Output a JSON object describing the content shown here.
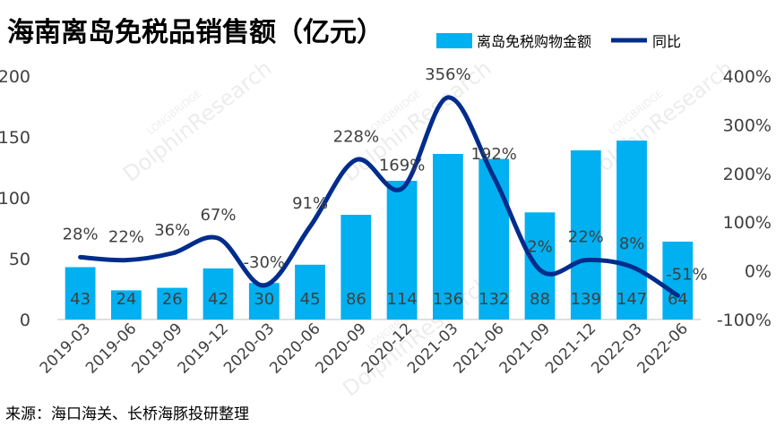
{
  "chart_data": {
    "type": "bar",
    "title": "海南离岛免税品销售额（亿元）",
    "categories": [
      "2019-03",
      "2019-06",
      "2019-09",
      "2019-12",
      "2020-03",
      "2020-06",
      "2020-09",
      "2020-12",
      "2021-03",
      "2021-06",
      "2021-09",
      "2021-12",
      "2022-03",
      "2022-06"
    ],
    "series": [
      {
        "name": "离岛免税购物金额",
        "type": "bar",
        "axis": "left",
        "color": "#00b0f0",
        "values": [
          43,
          24,
          26,
          42,
          30,
          45,
          86,
          114,
          136,
          132,
          88,
          139,
          147,
          64
        ],
        "labels": [
          "43",
          "24",
          "26",
          "42",
          "30",
          "45",
          "86",
          "114",
          "136",
          "132",
          "88",
          "139",
          "147",
          "64"
        ]
      },
      {
        "name": "同比",
        "type": "line",
        "axis": "right",
        "color": "#002c8c",
        "values": [
          28,
          22,
          36,
          67,
          -30,
          91,
          228,
          169,
          356,
          192,
          2,
          22,
          8,
          -51
        ],
        "labels": [
          "28%",
          "22%",
          "36%",
          "67%",
          "-30%",
          "91%",
          "228%",
          "169%",
          "356%",
          "192%",
          "2%",
          "22%",
          "8%",
          "-51%"
        ]
      }
    ],
    "left_axis": {
      "min": 0,
      "max": 200,
      "ticks": [
        "0",
        "50",
        "100",
        "150",
        "200"
      ]
    },
    "right_axis": {
      "min": -100,
      "max": 400,
      "ticks": [
        "-100%",
        "0%",
        "100%",
        "200%",
        "300%",
        "400%"
      ]
    },
    "grid": false,
    "legend": "top-right",
    "source": "来源：海口海关、长桥海豚投研整理",
    "watermark": [
      "LONGBRIDGE",
      "DolphinResearch"
    ]
  }
}
